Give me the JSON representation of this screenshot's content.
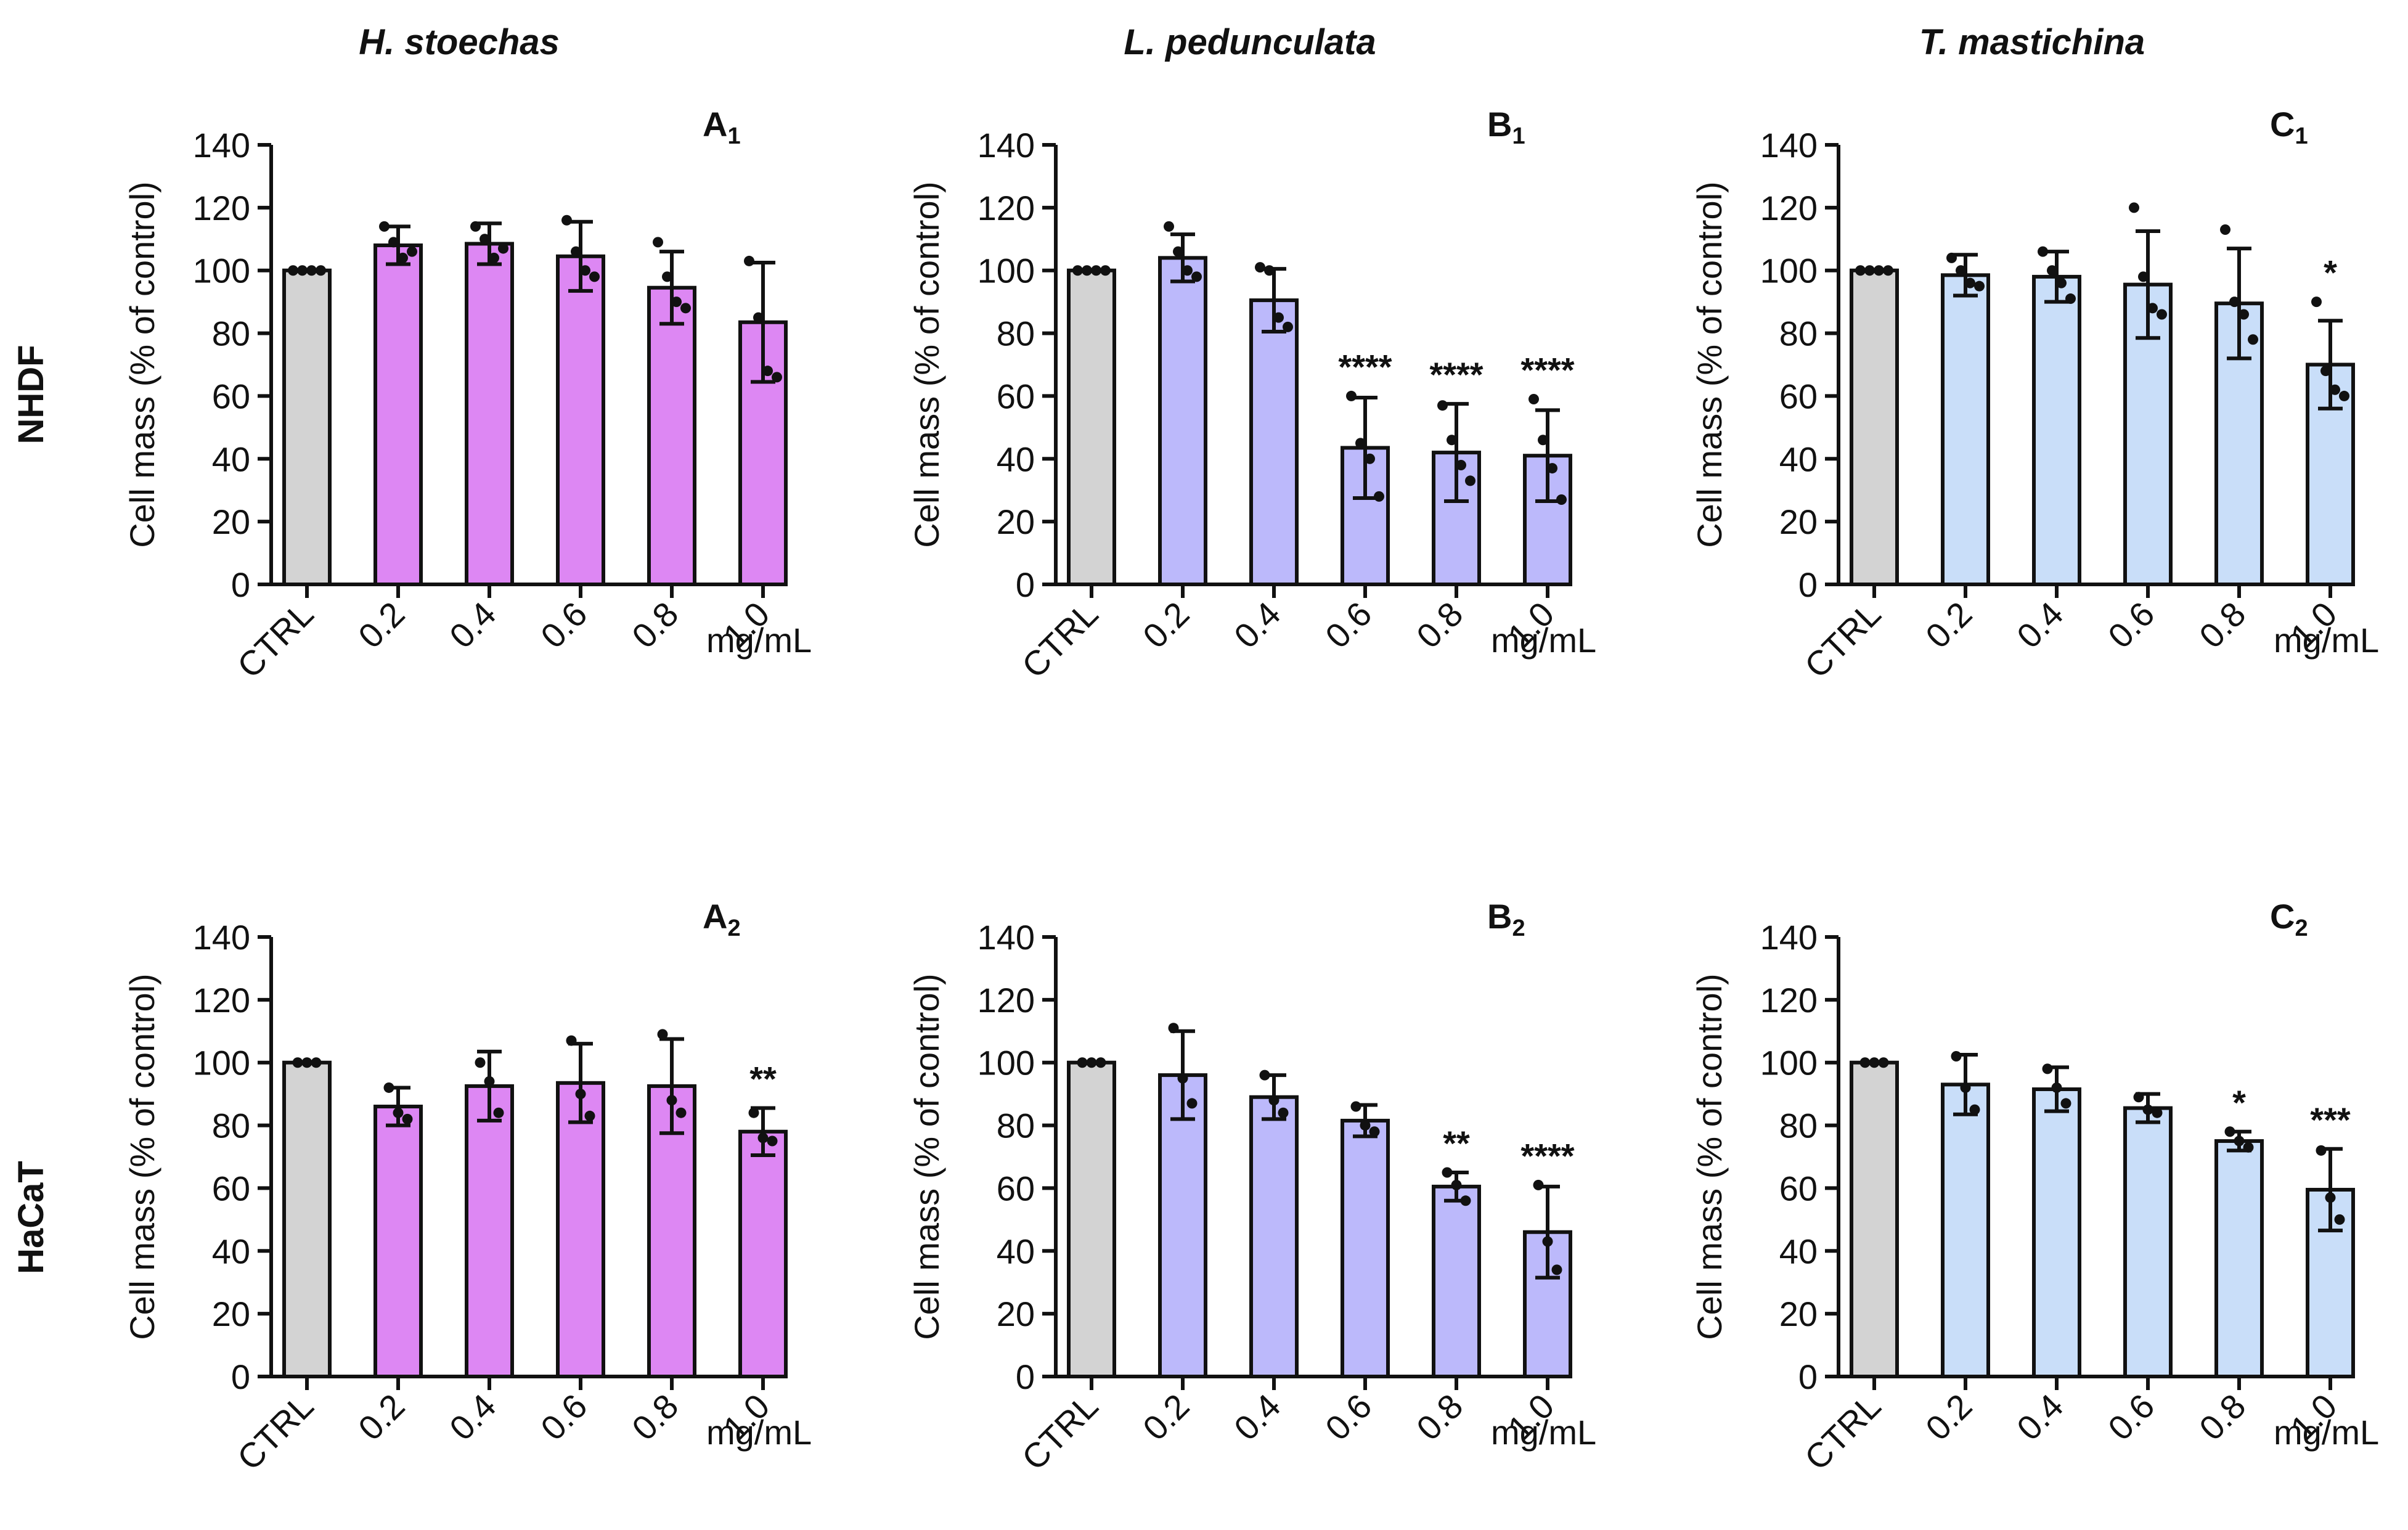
{
  "column_titles": [
    "H. stoechas",
    "L. pedunculata",
    "T. mastichina"
  ],
  "row_titles": [
    "NHDF",
    "HaCaT"
  ],
  "colors": {
    "ctrl": "#d3d3d3",
    "h_stoechas": "#dd87f3",
    "l_pedunculata": "#bcb9fb",
    "t_mastichina": "#c9def9",
    "stroke": "#111111"
  },
  "chart_data": [
    {
      "id": "A1",
      "panel": "A",
      "sub": "1",
      "row": 0,
      "col": 0,
      "color_key": "h_stoechas",
      "type": "bar",
      "ylabel": "Cell mass (% of control)",
      "unit_label": "mg/mL",
      "ylim": [
        0,
        140
      ],
      "yticks": [
        0,
        20,
        40,
        60,
        80,
        100,
        120,
        140
      ],
      "categories": [
        "CTRL",
        "0.2",
        "0.4",
        "0.6",
        "0.8",
        "1.0"
      ],
      "values": [
        100,
        108,
        108.5,
        104.5,
        94.5,
        83.5
      ],
      "sd": [
        0,
        6,
        6.5,
        11,
        11.5,
        19
      ],
      "points": [
        [
          100,
          100,
          100,
          100
        ],
        [
          114,
          109,
          104,
          106
        ],
        [
          114,
          110,
          104,
          107
        ],
        [
          116,
          106,
          100,
          98
        ],
        [
          109,
          98,
          90,
          88
        ],
        [
          103,
          85,
          68,
          66
        ]
      ],
      "significance": [
        "",
        "",
        "",
        "",
        "",
        ""
      ]
    },
    {
      "id": "B1",
      "panel": "B",
      "sub": "1",
      "row": 0,
      "col": 1,
      "color_key": "l_pedunculata",
      "type": "bar",
      "ylabel": "Cell mass (% of control)",
      "unit_label": "mg/mL",
      "ylim": [
        0,
        140
      ],
      "yticks": [
        0,
        20,
        40,
        60,
        80,
        100,
        120,
        140
      ],
      "categories": [
        "CTRL",
        "0.2",
        "0.4",
        "0.6",
        "0.8",
        "1.0"
      ],
      "values": [
        100,
        104,
        90.5,
        43.5,
        42,
        41
      ],
      "sd": [
        0,
        7.5,
        10,
        16,
        15.5,
        14.5
      ],
      "points": [
        [
          100,
          100,
          100,
          100
        ],
        [
          114,
          106,
          100,
          98
        ],
        [
          101,
          100,
          85,
          82
        ],
        [
          60,
          45,
          40,
          28
        ],
        [
          57,
          46,
          38,
          33
        ],
        [
          59,
          46,
          37,
          27
        ]
      ],
      "significance": [
        "",
        "",
        "",
        "****",
        "****",
        "****"
      ]
    },
    {
      "id": "C1",
      "panel": "C",
      "sub": "1",
      "row": 0,
      "col": 2,
      "color_key": "t_mastichina",
      "type": "bar",
      "ylabel": "Cell mass (% of control)",
      "unit_label": "mg/mL",
      "ylim": [
        0,
        140
      ],
      "yticks": [
        0,
        20,
        40,
        60,
        80,
        100,
        120,
        140
      ],
      "categories": [
        "CTRL",
        "0.2",
        "0.4",
        "0.6",
        "0.8",
        "1.0"
      ],
      "values": [
        100,
        98.5,
        98,
        95.5,
        89.5,
        70
      ],
      "sd": [
        0,
        6.5,
        8,
        17,
        17.5,
        14
      ],
      "points": [
        [
          100,
          100,
          100,
          100
        ],
        [
          104,
          100,
          96,
          95
        ],
        [
          106,
          100,
          96,
          91
        ],
        [
          120,
          98,
          88,
          86
        ],
        [
          113,
          90,
          86,
          78
        ],
        [
          90,
          68,
          62,
          60
        ]
      ],
      "significance": [
        "",
        "",
        "",
        "",
        "",
        "*"
      ]
    },
    {
      "id": "A2",
      "panel": "A",
      "sub": "2",
      "row": 1,
      "col": 0,
      "color_key": "h_stoechas",
      "type": "bar",
      "ylabel": "Cell mass (% of control)",
      "unit_label": "mg/mL",
      "ylim": [
        0,
        140
      ],
      "yticks": [
        0,
        20,
        40,
        60,
        80,
        100,
        120,
        140
      ],
      "categories": [
        "CTRL",
        "0.2",
        "0.4",
        "0.6",
        "0.8",
        "1.0"
      ],
      "values": [
        100,
        86,
        92.5,
        93.5,
        92.5,
        78
      ],
      "sd": [
        0,
        6,
        11,
        12.5,
        15,
        7.5
      ],
      "points": [
        [
          100,
          100,
          100
        ],
        [
          92,
          84,
          82
        ],
        [
          100,
          94,
          84
        ],
        [
          107,
          90,
          83
        ],
        [
          109,
          88,
          84
        ],
        [
          84,
          76,
          75
        ]
      ],
      "significance": [
        "",
        "",
        "",
        "",
        "",
        "**"
      ]
    },
    {
      "id": "B2",
      "panel": "B",
      "sub": "2",
      "row": 1,
      "col": 1,
      "color_key": "l_pedunculata",
      "type": "bar",
      "ylabel": "Cell mass (% of control)",
      "unit_label": "mg/mL",
      "ylim": [
        0,
        140
      ],
      "yticks": [
        0,
        20,
        40,
        60,
        80,
        100,
        120,
        140
      ],
      "categories": [
        "CTRL",
        "0.2",
        "0.4",
        "0.6",
        "0.8",
        "1.0"
      ],
      "values": [
        100,
        96,
        89,
        81.5,
        60.5,
        46
      ],
      "sd": [
        0,
        14,
        7,
        5,
        4.5,
        14.5
      ],
      "points": [
        [
          100,
          100,
          100
        ],
        [
          111,
          95,
          87
        ],
        [
          96,
          88,
          84
        ],
        [
          86,
          80,
          78
        ],
        [
          65,
          61,
          56
        ],
        [
          61,
          43,
          34
        ]
      ],
      "significance": [
        "",
        "",
        "",
        "",
        "**",
        "****"
      ]
    },
    {
      "id": "C2",
      "panel": "C",
      "sub": "2",
      "row": 1,
      "col": 2,
      "color_key": "t_mastichina",
      "type": "bar",
      "ylabel": "Cell mass (% of control)",
      "unit_label": "mg/mL",
      "ylim": [
        0,
        140
      ],
      "yticks": [
        0,
        20,
        40,
        60,
        80,
        100,
        120,
        140
      ],
      "categories": [
        "CTRL",
        "0.2",
        "0.4",
        "0.6",
        "0.8",
        "1.0"
      ],
      "values": [
        100,
        93,
        91.5,
        85.5,
        75,
        59.5
      ],
      "sd": [
        0,
        9.5,
        7,
        4.5,
        3,
        13
      ],
      "points": [
        [
          100,
          100,
          100
        ],
        [
          102,
          92,
          85
        ],
        [
          98,
          92,
          87
        ],
        [
          89,
          85,
          84
        ],
        [
          78,
          75,
          73
        ],
        [
          72,
          57,
          50
        ]
      ],
      "significance": [
        "",
        "",
        "",
        "",
        "*",
        "***"
      ]
    }
  ]
}
